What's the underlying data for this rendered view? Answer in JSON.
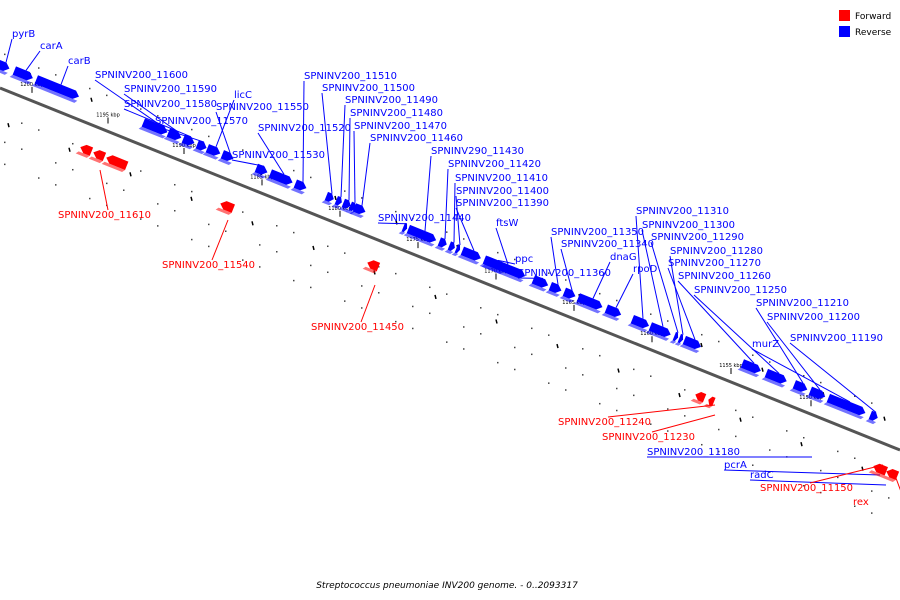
{
  "caption": "Streptococcus pneumoniae INV200 genome. - 0..2093317",
  "legend": [
    {
      "label": "Forward",
      "color": "#ff0000"
    },
    {
      "label": "Reverse",
      "color": "#0000ff"
    }
  ],
  "colors": {
    "forward": "#ff0000",
    "reverse": "#0000ff",
    "backbone": "#555555"
  },
  "tick_labels": [
    "1200 kbp",
    "1195 kbp",
    "1190 kbp",
    "1185 kbp",
    "1180 kbp",
    "1175 kbp",
    "1170 kbp",
    "1165 kbp",
    "1160 kbp",
    "1155 kbp",
    "1150 kbp"
  ],
  "genes_reverse": [
    "pyrB",
    "carA",
    "carB",
    "SPNINV200_11600",
    "SPNINV200_11590",
    "SPNINV200_11580",
    "SPNINV200_11570",
    "licC",
    "SPNINV200_11550",
    "SPNINV200_11530",
    "SPNINV200_11520",
    "SPNINV200_11510",
    "SPNINV200_11500",
    "SPNINV200_11490",
    "SPNINV200_11480",
    "SPNINV200_11470",
    "SPNINV200_11460",
    "SPNINV200_11440",
    "SPNINV290_11430",
    "SPNINV200_11420",
    "SPNINV200_11410",
    "SPNINV200_11400",
    "SPNINV200_11390",
    "ftsW",
    "ppc",
    "SPNINV200_11360",
    "SPNINV200_11350",
    "SPNINV200_11340",
    "dnaG",
    "rpoD",
    "SPNINV200_11310",
    "SPNINV200_11300",
    "SPNINV200_11290",
    "SPNINV200_11280",
    "SPNINV200_11270",
    "SPNINV200_11260",
    "SPNINV200_11250",
    "SPNINV200_11210",
    "SPNINV200_11200",
    "murZ",
    "SPNINV200_11190",
    "SPNINV200_11180",
    "pcrA",
    "radC"
  ],
  "genes_forward": [
    "SPNINV200_11610",
    "SPNINV200_11540",
    "SPNINV200_11450",
    "SPNINV200_11240",
    "SPNINV200_11230",
    "SPNINV200_11150",
    "rex"
  ]
}
